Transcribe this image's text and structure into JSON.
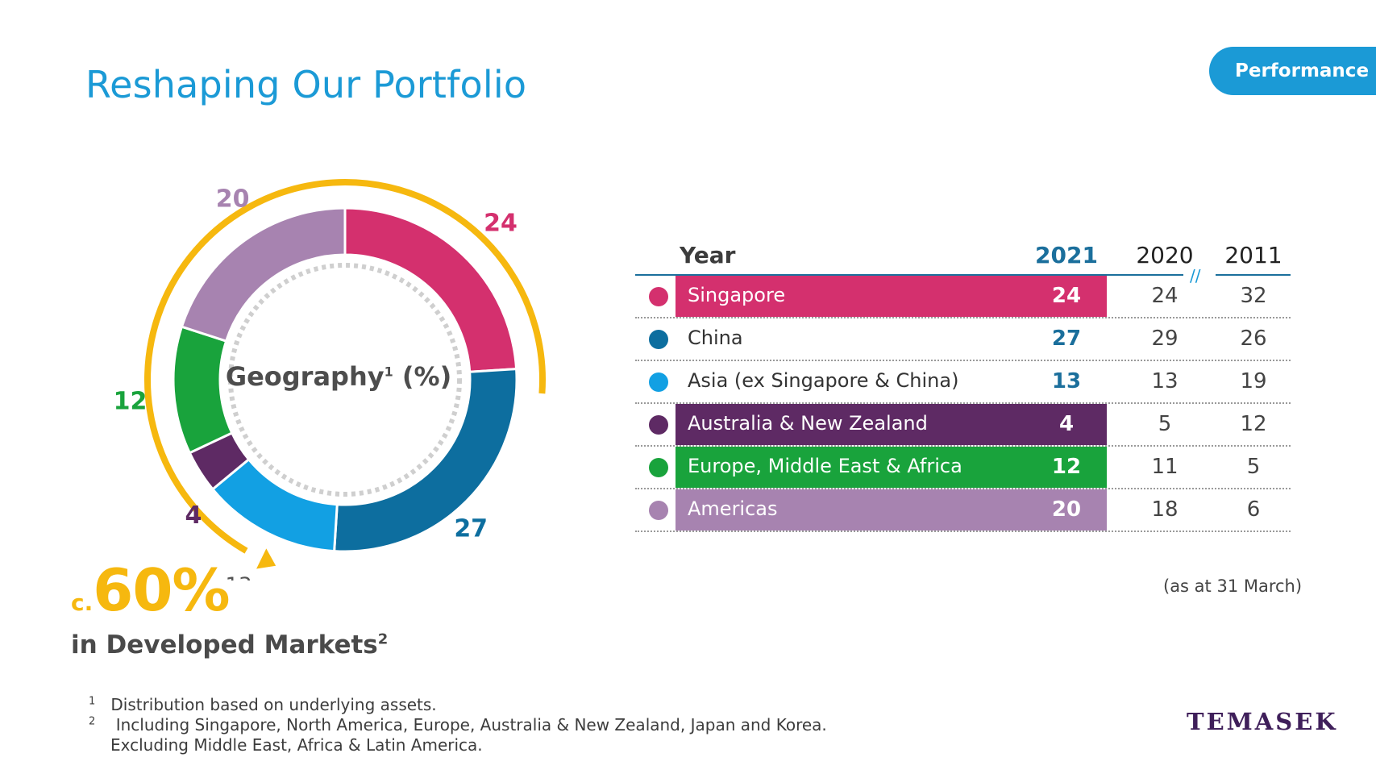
{
  "title": "Reshaping Our Portfolio",
  "section_tab": "Performance",
  "chart_data": {
    "type": "pie",
    "variant": "donut",
    "center_label": "Geography",
    "center_label_sup": "1",
    "center_label_unit": "(%)",
    "categories": [
      "Singapore",
      "China",
      "Asia (ex Singapore & China)",
      "Australia & New Zealand",
      "Europe, Middle East & Africa",
      "Americas"
    ],
    "values": [
      24,
      27,
      13,
      4,
      12,
      20
    ],
    "colors": [
      "#d4306e",
      "#0d6e9f",
      "#12a0e3",
      "#5e2a64",
      "#19a33c",
      "#a783b0"
    ],
    "developed_markets_arc_color": "#f6b80f"
  },
  "callout": {
    "prefix": "c.",
    "value": "60%",
    "label": "in Developed Markets",
    "label_sup": "2"
  },
  "table": {
    "header": {
      "year": "Year",
      "col_2021": "2021",
      "col_2020": "2020",
      "col_2011": "2011",
      "break_mark": "//"
    },
    "rows": [
      {
        "name": "Singapore",
        "v2021": "24",
        "v2020": "24",
        "v2011": "32",
        "color": "#d4306e",
        "highlight": true
      },
      {
        "name": "China",
        "v2021": "27",
        "v2020": "29",
        "v2011": "26",
        "color": "#0d6e9f",
        "highlight": false
      },
      {
        "name": "Asia (ex Singapore & China)",
        "v2021": "13",
        "v2020": "13",
        "v2011": "19",
        "color": "#12a0e3",
        "highlight": false
      },
      {
        "name": "Australia & New Zealand",
        "v2021": "4",
        "v2020": "5",
        "v2011": "12",
        "color": "#5e2a64",
        "highlight": true
      },
      {
        "name": "Europe, Middle East & Africa",
        "v2021": "12",
        "v2020": "11",
        "v2011": "5",
        "color": "#19a33c",
        "highlight": true
      },
      {
        "name": "Americas",
        "v2021": "20",
        "v2020": "18",
        "v2011": "6",
        "color": "#a783b0",
        "highlight": true
      }
    ],
    "note": "(as at 31 March)"
  },
  "footnotes": [
    {
      "num": "1",
      "text": "Distribution based on underlying assets."
    },
    {
      "num": "2",
      "text": "Including Singapore, North America, Europe, Australia & New Zealand, Japan and Korea."
    },
    {
      "num": "",
      "text": "Excluding Middle East, Africa & Latin America."
    }
  ],
  "logo": "TEMASEK"
}
